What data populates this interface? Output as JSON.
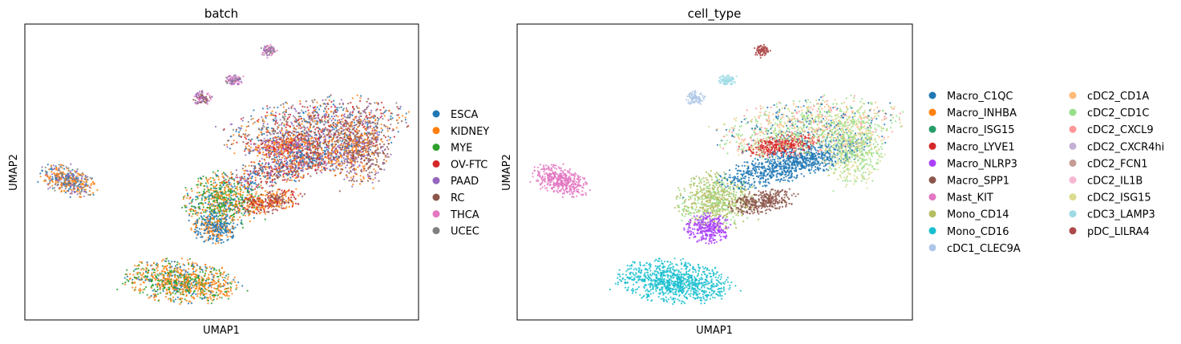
{
  "chart_data": [
    {
      "type": "scatter",
      "title": "batch",
      "xlabel": "UMAP1",
      "ylabel": "UMAP2",
      "grid": false,
      "ticks": false,
      "legend_placement": "right",
      "series": [
        {
          "name": "ESCA",
          "color": "#1f77b4"
        },
        {
          "name": "KIDNEY",
          "color": "#ff7f0e"
        },
        {
          "name": "MYE",
          "color": "#2ca02c"
        },
        {
          "name": "OV-FTC",
          "color": "#d62728"
        },
        {
          "name": "PAAD",
          "color": "#9467bd"
        },
        {
          "name": "RC",
          "color": "#8c564b"
        },
        {
          "name": "THCA",
          "color": "#e377c2"
        },
        {
          "name": "UCEC",
          "color": "#7f7f7f"
        }
      ]
    },
    {
      "type": "scatter",
      "title": "cell_type",
      "xlabel": "UMAP1",
      "ylabel": "UMAP2",
      "grid": false,
      "ticks": false,
      "legend_placement": "right",
      "legend_columns": 2,
      "series": [
        {
          "name": "Macro_C1QC",
          "color": "#1f77b4"
        },
        {
          "name": "Macro_INHBA",
          "color": "#ff7f0e"
        },
        {
          "name": "Macro_ISG15",
          "color": "#279e68"
        },
        {
          "name": "Macro_LYVE1",
          "color": "#d62728"
        },
        {
          "name": "Macro_NLRP3",
          "color": "#aa40fc"
        },
        {
          "name": "Macro_SPP1",
          "color": "#8c564b"
        },
        {
          "name": "Mast_KIT",
          "color": "#e377c2"
        },
        {
          "name": "Mono_CD14",
          "color": "#b5bd61"
        },
        {
          "name": "Mono_CD16",
          "color": "#17becf"
        },
        {
          "name": "cDC1_CLEC9A",
          "color": "#aec7e8"
        },
        {
          "name": "cDC2_CD1A",
          "color": "#ffbb78"
        },
        {
          "name": "cDC2_CD1C",
          "color": "#98df8a"
        },
        {
          "name": "cDC2_CXCL9",
          "color": "#ff9896"
        },
        {
          "name": "cDC2_CXCR4hi",
          "color": "#c5b0d5"
        },
        {
          "name": "cDC2_FCN1",
          "color": "#c49c94"
        },
        {
          "name": "cDC2_IL1B",
          "color": "#f7b6d2"
        },
        {
          "name": "cDC2_ISG15",
          "color": "#dbdb8d"
        },
        {
          "name": "cDC3_LAMP3",
          "color": "#9edae5"
        },
        {
          "name": "pDC_LILRA4",
          "color": "#ad494a"
        }
      ]
    }
  ]
}
